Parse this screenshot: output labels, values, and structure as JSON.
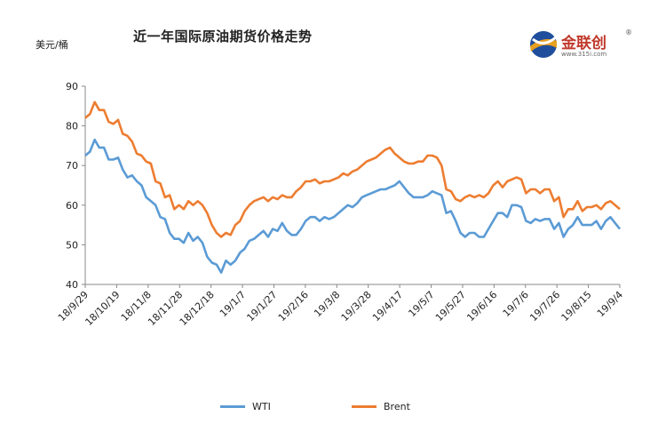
{
  "title": "近一年国际原油期货价格走势",
  "unit_label": "美元/桶",
  "logo": {
    "name": "金联创",
    "reg": "®",
    "url": "www.315i.com"
  },
  "colors": {
    "wti": "#5b9bd5",
    "brent": "#ed7d31"
  },
  "chart_data": {
    "type": "line",
    "title": "近一年国际原油期货价格走势",
    "ylabel": "美元/桶",
    "ylim": [
      40,
      90
    ],
    "yticks": [
      40,
      50,
      60,
      70,
      80,
      90
    ],
    "grid": false,
    "legend_position": "bottom",
    "x_labels": [
      "18/9/29",
      "18/10/19",
      "18/11/8",
      "18/11/28",
      "18/12/18",
      "19/1/7",
      "19/1/27",
      "19/2/16",
      "19/3/8",
      "19/3/28",
      "19/4/17",
      "19/5/7",
      "19/5/27",
      "19/6/16",
      "19/7/6",
      "19/7/26",
      "19/8/15",
      "19/9/4"
    ],
    "series": [
      {
        "name": "WTI",
        "values": [
          72.5,
          73.5,
          76.5,
          74.5,
          74.5,
          71.5,
          71.5,
          72,
          69,
          67,
          67.5,
          66,
          65,
          62,
          61,
          60,
          57,
          56.5,
          53,
          51.5,
          51.5,
          50.5,
          53,
          51,
          52,
          50.5,
          47,
          45.5,
          45,
          43,
          46,
          45,
          46,
          48,
          49,
          51,
          51.5,
          52.5,
          53.5,
          52,
          54,
          53.5,
          55.5,
          53.5,
          52.5,
          52.5,
          54,
          56,
          57,
          57,
          56,
          57,
          56.5,
          57,
          58,
          59,
          60,
          59.5,
          60.5,
          62,
          62.5,
          63,
          63.5,
          64,
          64,
          64.5,
          65,
          66,
          64.5,
          63,
          62,
          62,
          62,
          62.5,
          63.5,
          63,
          62.5,
          58,
          58.5,
          56,
          53,
          52,
          53,
          53,
          52,
          52,
          54,
          56,
          58,
          58,
          57,
          60,
          60,
          59.5,
          56,
          55.5,
          56.5,
          56,
          56.5,
          56.5,
          54,
          55.5,
          52,
          54,
          55,
          57,
          55,
          55,
          55,
          56,
          54,
          56,
          57,
          55.5,
          54
        ]
      },
      {
        "name": "Brent",
        "values": [
          82,
          83,
          86,
          84,
          84,
          81,
          80.5,
          81.5,
          78,
          77.5,
          76,
          73,
          72.5,
          71,
          70.5,
          66,
          65.5,
          62,
          62.5,
          59,
          60,
          59,
          61,
          60,
          61,
          60,
          58,
          55,
          53,
          52,
          53,
          52.5,
          55,
          56,
          58.5,
          60,
          61,
          61.5,
          62,
          61,
          62,
          61.5,
          62.5,
          62,
          62,
          63.5,
          64.5,
          66,
          66,
          66.5,
          65.5,
          66,
          66,
          66.5,
          67,
          68,
          67.5,
          68.5,
          69,
          70,
          71,
          71.5,
          72,
          73,
          74,
          74.5,
          73,
          72,
          71,
          70.5,
          70.5,
          71,
          71,
          72.5,
          72.5,
          72,
          70,
          64,
          63.5,
          61.5,
          61,
          62,
          62.5,
          62,
          62.5,
          62,
          63,
          65,
          66,
          64.5,
          66,
          66.5,
          67,
          66.5,
          63,
          64,
          64,
          63,
          64,
          64,
          61,
          62,
          57,
          59,
          59,
          61,
          58.5,
          59.5,
          59.5,
          60,
          59,
          60.5,
          61,
          60,
          59
        ]
      }
    ]
  },
  "legend": [
    {
      "label": "WTI"
    },
    {
      "label": "Brent"
    }
  ]
}
